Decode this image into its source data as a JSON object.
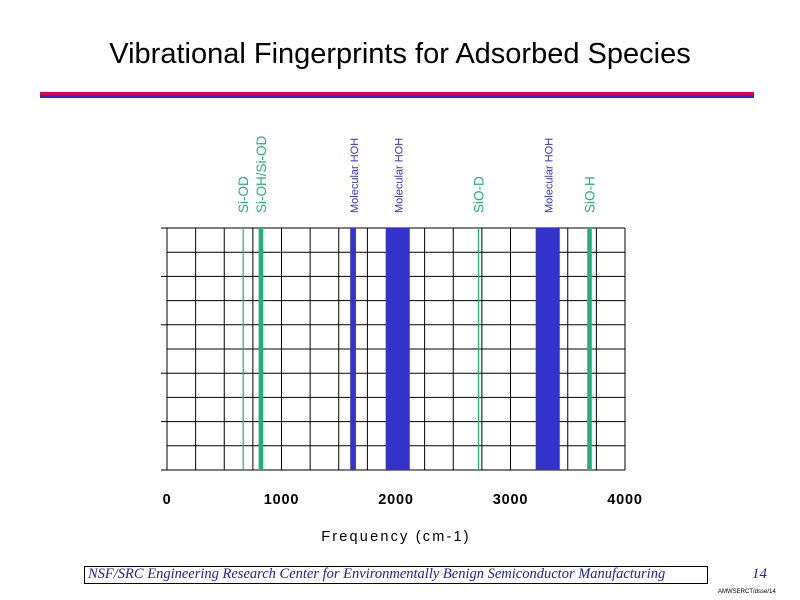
{
  "slide": {
    "title": "Vibrational Fingerprints for Adsorbed Species",
    "footer": "NSF/SRC Engineering Research Center for Environmentally Benign Semiconductor Manufacturing",
    "page_number": "14",
    "slide_code": "AMWSERCT/dsse/14"
  },
  "colors": {
    "title_rule_top": "#e0004c",
    "title_rule_bottom": "#2b2bd2",
    "teal_series": "#20b07a",
    "blue_series": "#3333cc"
  },
  "chart_data": {
    "type": "bar",
    "xlabel": "Frequency (cm-1)",
    "xlim": [
      0,
      4000
    ],
    "x_ticks": [
      0,
      1000,
      2000,
      3000,
      4000
    ],
    "x_tick_labels": [
      "0",
      "1000",
      "2000",
      "3000",
      "4000"
    ],
    "grid": true,
    "bands": [
      {
        "label": "Si-OD",
        "x_min": 660,
        "x_max": 670,
        "color": "#20b07a"
      },
      {
        "label": "Si-OH/Si-OD",
        "x_min": 800,
        "x_max": 840,
        "color": "#20b07a"
      },
      {
        "label": "Molecular HOH",
        "x_min": 1600,
        "x_max": 1650,
        "color": "#3333cc"
      },
      {
        "label": "Molecular HOH",
        "x_min": 1910,
        "x_max": 2120,
        "color": "#3333cc"
      },
      {
        "label": "SiO-D",
        "x_min": 2715,
        "x_max": 2725,
        "color": "#20b07a"
      },
      {
        "label": "Molecular HOH",
        "x_min": 3220,
        "x_max": 3430,
        "color": "#3333cc"
      },
      {
        "label": "SiO-H",
        "x_min": 3670,
        "x_max": 3710,
        "color": "#20b07a"
      }
    ]
  }
}
